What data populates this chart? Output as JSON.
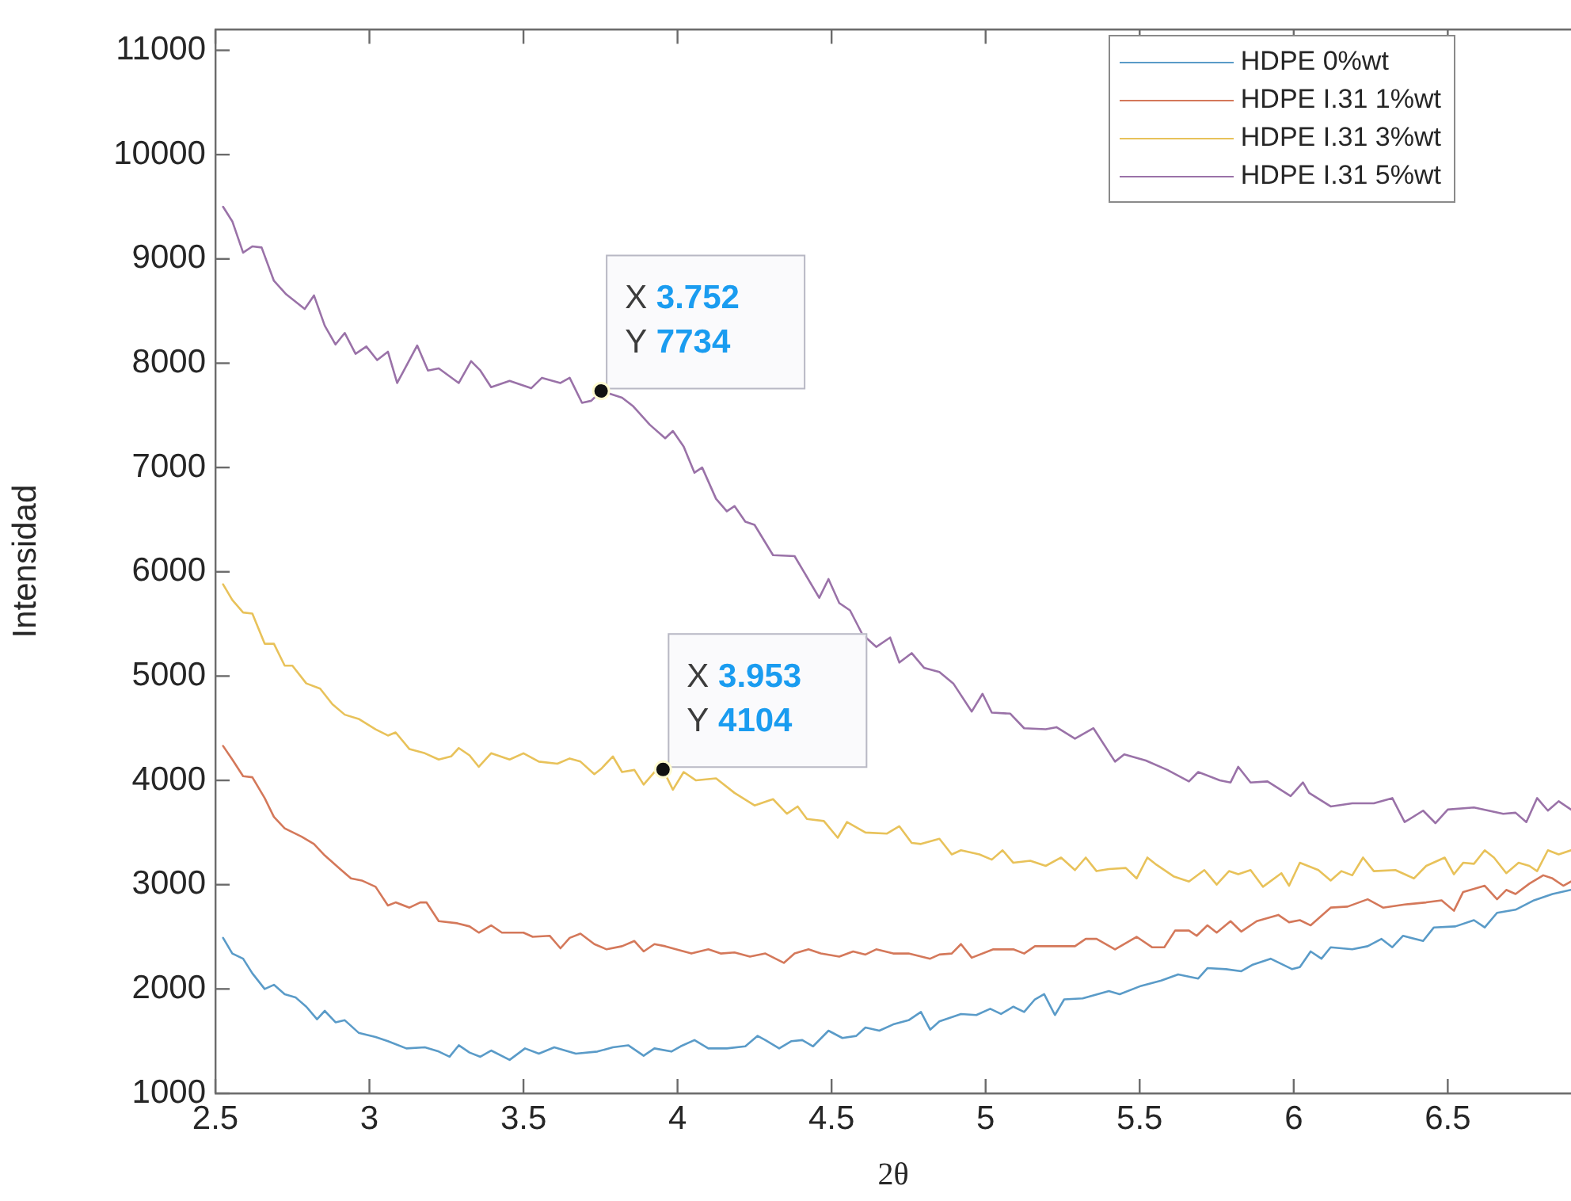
{
  "chart_data": {
    "type": "line",
    "xlabel": "2θ",
    "ylabel": "Intensidad",
    "xlim": [
      2.5,
      6.9
    ],
    "xticks": [
      2.5,
      3,
      3.5,
      4,
      4.5,
      5,
      5.5,
      6,
      6.5
    ],
    "ylim": [
      1000,
      11200
    ],
    "yticks": [
      1000,
      2000,
      3000,
      4000,
      5000,
      6000,
      7000,
      8000,
      9000,
      10000,
      11000
    ],
    "grid": false,
    "legend": "top right",
    "marker": "none",
    "line_style": "solid",
    "annotations": [
      {
        "text": "X 3.752\nY 7734",
        "x": 3.752,
        "y": 7734
      },
      {
        "text": "X 3.953\nY 4104",
        "x": 3.953,
        "y": 4104
      }
    ],
    "series": [
      {
        "name": "HDPE 0%wt",
        "color": "#5a9bc8",
        "x": [
          2.525,
          2.555,
          2.59,
          2.62,
          2.66,
          2.69,
          2.725,
          2.76,
          2.795,
          2.83,
          2.855,
          2.89,
          2.92,
          2.965,
          3.02,
          3.06,
          3.12,
          3.18,
          3.225,
          3.26,
          3.29,
          3.325,
          3.36,
          3.395,
          3.455,
          3.505,
          3.55,
          3.6,
          3.67,
          3.74,
          3.79,
          3.84,
          3.89,
          3.925,
          3.98,
          4.01,
          4.055,
          4.1,
          4.16,
          4.22,
          4.26,
          4.285,
          4.33,
          4.37,
          4.405,
          4.44,
          4.49,
          4.535,
          4.58,
          4.61,
          4.655,
          4.7,
          4.75,
          4.79,
          4.82,
          4.85,
          4.92,
          4.97,
          5.015,
          5.05,
          5.09,
          5.125,
          5.16,
          5.19,
          5.225,
          5.255,
          5.315,
          5.4,
          5.435,
          5.505,
          5.57,
          5.625,
          5.69,
          5.72,
          5.78,
          5.83,
          5.865,
          5.925,
          5.995,
          6.02,
          6.055,
          6.09,
          6.12,
          6.19,
          6.24,
          6.285,
          6.32,
          6.355,
          6.42,
          6.455,
          6.525,
          6.585,
          6.62,
          6.66,
          6.72,
          6.78,
          6.84,
          6.9
        ],
        "values": [
          2490,
          2340,
          2290,
          2150,
          2000,
          2040,
          1950,
          1920,
          1830,
          1710,
          1790,
          1680,
          1700,
          1580,
          1540,
          1500,
          1430,
          1440,
          1400,
          1350,
          1460,
          1390,
          1350,
          1410,
          1320,
          1430,
          1380,
          1440,
          1380,
          1400,
          1440,
          1460,
          1360,
          1430,
          1400,
          1450,
          1510,
          1430,
          1430,
          1450,
          1550,
          1510,
          1430,
          1500,
          1510,
          1450,
          1600,
          1530,
          1550,
          1630,
          1600,
          1660,
          1700,
          1780,
          1610,
          1690,
          1760,
          1750,
          1810,
          1760,
          1830,
          1780,
          1900,
          1950,
          1750,
          1900,
          1910,
          1980,
          1950,
          2030,
          2080,
          2140,
          2100,
          2200,
          2190,
          2170,
          2230,
          2290,
          2190,
          2210,
          2360,
          2290,
          2400,
          2380,
          2410,
          2480,
          2400,
          2510,
          2460,
          2590,
          2600,
          2660,
          2590,
          2730,
          2760,
          2850,
          2910,
          2950
        ]
      },
      {
        "name": "HDPE I.31 1%wt",
        "color": "#d4785a",
        "x": [
          2.525,
          2.555,
          2.59,
          2.62,
          2.66,
          2.69,
          2.725,
          2.78,
          2.82,
          2.855,
          2.905,
          2.94,
          2.975,
          3.02,
          3.06,
          3.085,
          3.13,
          3.165,
          3.185,
          3.225,
          3.285,
          3.325,
          3.355,
          3.395,
          3.43,
          3.5,
          3.53,
          3.585,
          3.62,
          3.65,
          3.685,
          3.73,
          3.77,
          3.82,
          3.86,
          3.89,
          3.925,
          3.96,
          3.995,
          4.045,
          4.1,
          4.14,
          4.185,
          4.235,
          4.285,
          4.345,
          4.38,
          4.425,
          4.465,
          4.525,
          4.57,
          4.61,
          4.645,
          4.7,
          4.75,
          4.82,
          4.85,
          4.89,
          4.92,
          4.955,
          5.025,
          5.09,
          5.125,
          5.16,
          5.23,
          5.29,
          5.325,
          5.36,
          5.42,
          5.49,
          5.54,
          5.58,
          5.615,
          5.66,
          5.685,
          5.72,
          5.75,
          5.795,
          5.83,
          5.88,
          5.95,
          5.985,
          6.02,
          6.055,
          6.12,
          6.175,
          6.24,
          6.29,
          6.36,
          6.43,
          6.48,
          6.52,
          6.55,
          6.62,
          6.66,
          6.69,
          6.72,
          6.765,
          6.81,
          6.84,
          6.875,
          6.9
        ],
        "values": [
          4330,
          4200,
          4040,
          4030,
          3830,
          3650,
          3540,
          3460,
          3390,
          3280,
          3150,
          3060,
          3040,
          2980,
          2800,
          2830,
          2780,
          2830,
          2830,
          2650,
          2630,
          2600,
          2540,
          2610,
          2540,
          2540,
          2500,
          2510,
          2390,
          2490,
          2530,
          2430,
          2380,
          2410,
          2460,
          2360,
          2430,
          2410,
          2380,
          2340,
          2380,
          2340,
          2350,
          2310,
          2340,
          2250,
          2340,
          2380,
          2340,
          2310,
          2360,
          2330,
          2380,
          2340,
          2340,
          2290,
          2330,
          2340,
          2430,
          2300,
          2380,
          2380,
          2340,
          2410,
          2410,
          2410,
          2480,
          2480,
          2380,
          2500,
          2400,
          2400,
          2560,
          2560,
          2510,
          2610,
          2540,
          2650,
          2550,
          2650,
          2710,
          2640,
          2660,
          2610,
          2780,
          2790,
          2860,
          2780,
          2810,
          2830,
          2850,
          2750,
          2930,
          2990,
          2860,
          2950,
          2910,
          3010,
          3090,
          3060,
          2990,
          3030
        ]
      },
      {
        "name": "HDPE I.31 3%wt",
        "color": "#e8c25a",
        "x": [
          2.525,
          2.555,
          2.59,
          2.62,
          2.66,
          2.69,
          2.725,
          2.75,
          2.795,
          2.84,
          2.88,
          2.92,
          2.965,
          3.02,
          3.06,
          3.085,
          3.13,
          3.18,
          3.225,
          3.265,
          3.29,
          3.325,
          3.355,
          3.395,
          3.455,
          3.5,
          3.55,
          3.61,
          3.65,
          3.685,
          3.73,
          3.752,
          3.79,
          3.82,
          3.86,
          3.89,
          3.925,
          3.953,
          3.985,
          4.02,
          4.06,
          4.125,
          4.185,
          4.25,
          4.31,
          4.355,
          4.39,
          4.42,
          4.475,
          4.52,
          4.55,
          4.61,
          4.68,
          4.72,
          4.76,
          4.79,
          4.85,
          4.89,
          4.92,
          4.98,
          5.02,
          5.055,
          5.09,
          5.145,
          5.195,
          5.245,
          5.29,
          5.325,
          5.36,
          5.4,
          5.455,
          5.49,
          5.525,
          5.555,
          5.61,
          5.66,
          5.71,
          5.75,
          5.79,
          5.82,
          5.86,
          5.9,
          5.96,
          5.985,
          6.02,
          6.08,
          6.12,
          6.155,
          6.19,
          6.225,
          6.26,
          6.33,
          6.39,
          6.43,
          6.49,
          6.52,
          6.55,
          6.585,
          6.62,
          6.65,
          6.69,
          6.73,
          6.765,
          6.79,
          6.825,
          6.86,
          6.9
        ],
        "values": [
          5880,
          5730,
          5610,
          5600,
          5310,
          5310,
          5100,
          5100,
          4930,
          4880,
          4730,
          4630,
          4590,
          4490,
          4430,
          4460,
          4300,
          4260,
          4200,
          4230,
          4310,
          4240,
          4130,
          4260,
          4200,
          4260,
          4180,
          4160,
          4210,
          4180,
          4060,
          4110,
          4230,
          4080,
          4100,
          3960,
          4080,
          4104,
          3910,
          4080,
          4000,
          4020,
          3880,
          3760,
          3820,
          3680,
          3750,
          3630,
          3610,
          3450,
          3600,
          3500,
          3490,
          3560,
          3400,
          3390,
          3440,
          3290,
          3330,
          3290,
          3240,
          3330,
          3210,
          3230,
          3180,
          3260,
          3140,
          3260,
          3130,
          3150,
          3160,
          3060,
          3260,
          3190,
          3080,
          3030,
          3140,
          3000,
          3130,
          3100,
          3140,
          2980,
          3110,
          2990,
          3210,
          3140,
          3040,
          3130,
          3090,
          3260,
          3130,
          3140,
          3060,
          3180,
          3260,
          3100,
          3210,
          3200,
          3330,
          3260,
          3110,
          3210,
          3180,
          3130,
          3330,
          3290,
          3330
        ]
      },
      {
        "name": "HDPE I.31 5%wt",
        "color": "#9a72a8",
        "x": [
          2.525,
          2.555,
          2.59,
          2.62,
          2.65,
          2.69,
          2.73,
          2.79,
          2.82,
          2.855,
          2.89,
          2.92,
          2.955,
          2.99,
          3.025,
          3.06,
          3.09,
          3.155,
          3.19,
          3.225,
          3.29,
          3.33,
          3.36,
          3.395,
          3.455,
          3.525,
          3.56,
          3.62,
          3.65,
          3.69,
          3.72,
          3.752,
          3.82,
          3.855,
          3.91,
          3.96,
          3.985,
          4.02,
          4.055,
          4.08,
          4.125,
          4.16,
          4.185,
          4.22,
          4.25,
          4.31,
          4.38,
          4.46,
          4.49,
          4.525,
          4.56,
          4.6,
          4.645,
          4.69,
          4.72,
          4.76,
          4.8,
          4.85,
          4.895,
          4.955,
          4.99,
          5.02,
          5.08,
          5.125,
          5.195,
          5.23,
          5.29,
          5.35,
          5.42,
          5.45,
          5.52,
          5.59,
          5.66,
          5.69,
          5.76,
          5.795,
          5.82,
          5.86,
          5.915,
          5.99,
          6.03,
          6.05,
          6.12,
          6.19,
          6.26,
          6.32,
          6.36,
          6.42,
          6.46,
          6.5,
          6.585,
          6.68,
          6.72,
          6.755,
          6.79,
          6.825,
          6.86,
          6.9
        ],
        "values": [
          9500,
          9360,
          9060,
          9120,
          9110,
          8790,
          8660,
          8520,
          8650,
          8360,
          8180,
          8290,
          8090,
          8160,
          8030,
          8110,
          7810,
          8170,
          7930,
          7950,
          7810,
          8020,
          7930,
          7770,
          7830,
          7760,
          7860,
          7810,
          7860,
          7620,
          7640,
          7734,
          7670,
          7590,
          7410,
          7280,
          7350,
          7200,
          6950,
          7000,
          6700,
          6580,
          6630,
          6480,
          6450,
          6160,
          6150,
          5750,
          5930,
          5700,
          5630,
          5400,
          5280,
          5370,
          5130,
          5220,
          5080,
          5040,
          4930,
          4660,
          4830,
          4650,
          4640,
          4500,
          4490,
          4510,
          4400,
          4500,
          4180,
          4250,
          4190,
          4100,
          3990,
          4080,
          4000,
          3980,
          4130,
          3980,
          3990,
          3850,
          3980,
          3880,
          3750,
          3780,
          3780,
          3830,
          3600,
          3710,
          3590,
          3720,
          3740,
          3680,
          3690,
          3600,
          3830,
          3710,
          3800,
          3720
        ]
      }
    ]
  }
}
